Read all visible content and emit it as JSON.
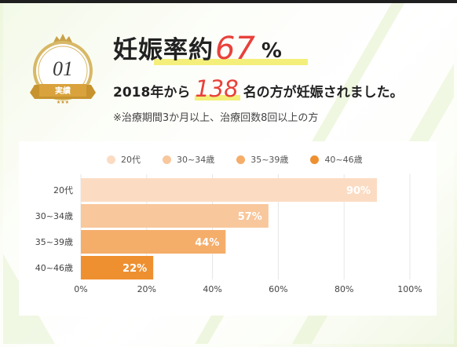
{
  "badge": {
    "number": "01",
    "label": "実績"
  },
  "headline": {
    "prefix": "妊娠率約",
    "value": "67",
    "unit": "%"
  },
  "subline": {
    "prefix": "2018年から",
    "count": "138",
    "suffix": "名の方が妊娠されました。"
  },
  "note": "※治療期間3か月以上、治療回数8回以上の方",
  "colors": {
    "accent": "#e8413a",
    "highlight": "#f3ef7a"
  },
  "chart_data": {
    "type": "bar",
    "orientation": "horizontal",
    "categories": [
      "20代",
      "30~34歳",
      "35~39歳",
      "40~46歳"
    ],
    "values": [
      90,
      57,
      44,
      22
    ],
    "value_labels": [
      "90%",
      "57%",
      "44%",
      "22%"
    ],
    "colors": [
      "#fbdcc3",
      "#f8c79c",
      "#f5ad6a",
      "#ee9030"
    ],
    "xlim": [
      0,
      100
    ],
    "xticks": [
      "0%",
      "20%",
      "40%",
      "60%",
      "80%",
      "100%"
    ],
    "grid": true,
    "legend": [
      "20代",
      "30~34歳",
      "35~39歳",
      "40~46歳"
    ],
    "legend_position": "top"
  }
}
